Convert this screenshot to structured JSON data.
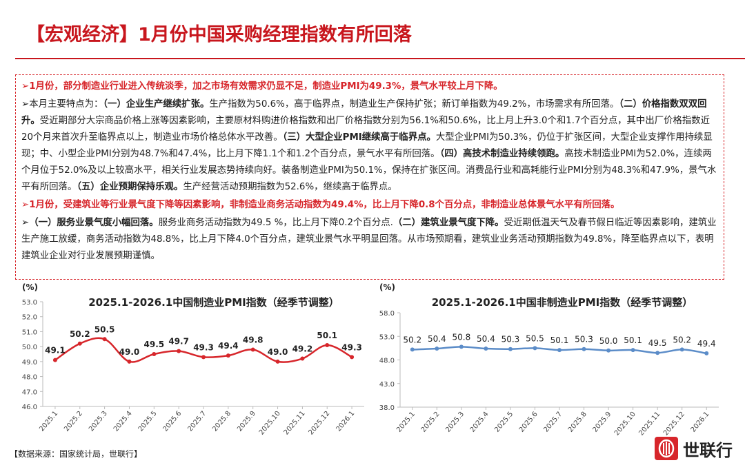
{
  "header": {
    "title": "【宏观经济】1月份中国采购经理指数有所回落"
  },
  "paragraphs": [
    {
      "highlight": true,
      "runs": [
        {
          "text": "➢1月份，部分制造业行业进入传统淡季，加之市场有效需求仍显不足，制造业PMI为49.3%，景气水平较上月下降。",
          "bold": true
        }
      ]
    },
    {
      "highlight": false,
      "runs": [
        {
          "text": "➢本月主要特点为：",
          "bold": false
        },
        {
          "text": "（一）企业生产继续扩张。",
          "bold": true
        },
        {
          "text": "生产指数为50.6%，高于临界点，制造业生产保持扩张；新订单指数为49.2%，市场需求有所回落。",
          "bold": false
        },
        {
          "text": "（二）价格指数双双回升。",
          "bold": true
        },
        {
          "text": "受近期部分大宗商品价格上涨等因素影响，主要原材料购进价格指数和出厂价格指数分别为56.1%和50.6%，比上月上升3.0个和1.7个百分点，其中出厂价格指数近20个月来首次升至临界点以上，制造业市场价格总体水平改善。",
          "bold": false
        },
        {
          "text": "（三）大型企业PMI继续高于临界点。",
          "bold": true
        },
        {
          "text": "大型企业PMI为50.3%，仍位于扩张区间，大型企业支撑作用持续显现；中、小型企业PMI分别为48.7%和47.4%，比上月下降1.1个和1.2个百分点，景气水平有所回落。",
          "bold": false
        },
        {
          "text": "（四）高技术制造业持续领跑。",
          "bold": true
        },
        {
          "text": "高技术制造业PMI为52.0%，连续两个月位于52.0%及以上较高水平，相关行业发展态势持续向好。装备制造业PMI为50.1%，保持在扩张区间。消费品行业和高耗能行业PMI分别为48.3%和47.9%，景气水平有所回落。",
          "bold": false
        },
        {
          "text": "（五）企业预期保持乐观。",
          "bold": true
        },
        {
          "text": "生产经营活动预期指数为52.6%，继续高于临界点。",
          "bold": false
        }
      ]
    },
    {
      "highlight": true,
      "runs": [
        {
          "text": "➢1月份，受建筑业等行业景气度下降等因素影响，非制造业商务活动指数为49.4%，比上月下降0.8个百分点，非制造业总体景气水平有所回落。",
          "bold": true
        }
      ]
    },
    {
      "highlight": false,
      "runs": [
        {
          "text": "➢",
          "bold": false
        },
        {
          "text": "（一）服务业景气度小幅回落。",
          "bold": true
        },
        {
          "text": "服务业商务活动指数为49.5 %，比上月下降0.2个百分点.",
          "bold": false
        },
        {
          "text": "（二）建筑业景气度下降。",
          "bold": true
        },
        {
          "text": "受近期低温天气及春节假日临近等因素影响，建筑业生产施工放缓，商务活动指数为48.8%，比上月下降4.0个百分点，建筑业景气水平明显回落。从市场预期看，建筑业业务活动预期指数为49.8%，降至临界点以下，表明建筑业企业对行业发展预期谨慎。",
          "bold": false
        }
      ]
    }
  ],
  "chart_data": [
    {
      "type": "line",
      "title": "2025.1-2026.1中国制造业PMI指数（经季节调整）",
      "y_label": "(%)",
      "color": "#d7262b",
      "categories": [
        "2025.1",
        "2025.2",
        "2025.3",
        "2025.4",
        "2025.5",
        "2025.6",
        "2025.7",
        "2025.8",
        "2025.9",
        "2025.10",
        "2025.11",
        "2025.12",
        "2026.1"
      ],
      "values": [
        49.1,
        50.2,
        50.5,
        49.0,
        49.5,
        49.7,
        49.3,
        49.4,
        49.8,
        49.0,
        49.2,
        50.1,
        49.3
      ],
      "value_labels": [
        "49.1",
        "50.2",
        "50.5",
        "49.0",
        "49.5",
        "49.7",
        "49.3",
        "49.4",
        "49.8",
        "49.0",
        "49.2",
        "50.1",
        "49.3"
      ],
      "ylim": [
        46,
        53
      ],
      "yticks": [
        {
          "value": 46,
          "label": "46.0"
        },
        {
          "value": 47,
          "label": "47.0"
        },
        {
          "value": 48,
          "label": "48.0"
        },
        {
          "value": 49,
          "label": "49.0"
        },
        {
          "value": 50,
          "label": "50.0"
        },
        {
          "value": 51,
          "label": "51.0"
        },
        {
          "value": 52,
          "label": "52.0"
        },
        {
          "value": 53,
          "label": "53.0"
        }
      ],
      "grid": false
    },
    {
      "type": "line",
      "title": "2025.1-2026.1中国非制造业PMI指数（经季节调整）",
      "y_label": "(%)",
      "color": "#5b8cc8",
      "categories": [
        "2025.1",
        "2025.2",
        "2025.3",
        "2025.4",
        "2025.5",
        "2025.6",
        "2025.7",
        "2025.8",
        "2025.9",
        "2025.10",
        "2025.11",
        "2025.12",
        "2026.1"
      ],
      "values": [
        50.2,
        50.4,
        50.8,
        50.4,
        50.3,
        50.5,
        50.1,
        50.3,
        50.0,
        50.1,
        49.5,
        50.2,
        49.4
      ],
      "value_labels": [
        "50.2",
        "50.4",
        "50.8",
        "50.4",
        "50.3",
        "50.5",
        "50.1",
        "50.3",
        "50.0",
        "50.1",
        "49.5",
        "50.2",
        "49.4"
      ],
      "ylim": [
        38,
        58
      ],
      "yticks": [
        {
          "value": 38,
          "label": "38.0"
        },
        {
          "value": 43,
          "label": "43.0"
        },
        {
          "value": 48,
          "label": "48.0"
        },
        {
          "value": 53,
          "label": "53.0"
        },
        {
          "value": 58,
          "label": "58.0"
        }
      ],
      "grid": false
    }
  ],
  "footer": {
    "source": "【数据来源：国家统计局，世联行】",
    "logo": "世联行"
  }
}
